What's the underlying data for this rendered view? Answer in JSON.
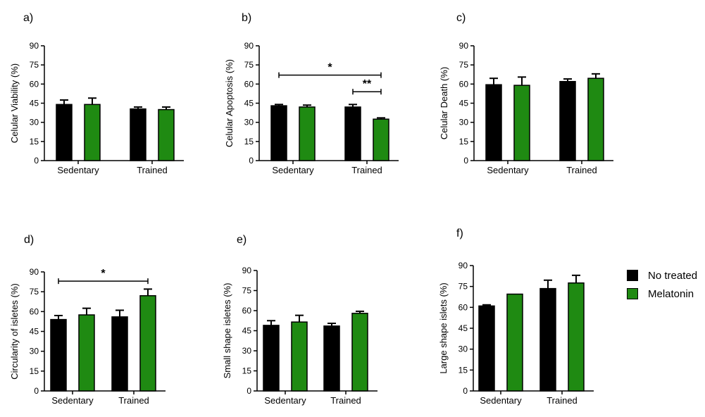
{
  "colors": {
    "no_treated": "#000000",
    "melatonin": "#1f8a12",
    "axis": "#000000"
  },
  "legend": {
    "items": [
      {
        "label": "No treated",
        "color": "#000000"
      },
      {
        "label": "Melatonin",
        "color": "#1f8a12"
      }
    ]
  },
  "chart_data": [
    {
      "panel": "a)",
      "type": "bar",
      "ylabel": "Celular Viability (%)",
      "ylim": [
        0,
        90
      ],
      "yticks": [
        "0",
        "15",
        "30",
        "45",
        "60",
        "75",
        "90"
      ],
      "categories": [
        "Sedentary",
        "Trained"
      ],
      "series": [
        {
          "name": "No treated",
          "values": [
            44,
            40.5
          ],
          "errors": [
            3.5,
            1.5
          ]
        },
        {
          "name": "Melatonin",
          "values": [
            44,
            40
          ],
          "errors": [
            5,
            2
          ]
        }
      ],
      "annotations": []
    },
    {
      "panel": "b)",
      "type": "bar",
      "ylabel": "Celular Apoptosis (%)",
      "ylim": [
        0,
        90
      ],
      "yticks": [
        "0",
        "15",
        "30",
        "45",
        "60",
        "75",
        "90"
      ],
      "categories": [
        "Sedentary",
        "Trained"
      ],
      "series": [
        {
          "name": "No treated",
          "values": [
            43,
            42
          ],
          "errors": [
            1,
            2
          ]
        },
        {
          "name": "Melatonin",
          "values": [
            42,
            32.5
          ],
          "errors": [
            1.5,
            1
          ]
        }
      ],
      "annotations": [
        {
          "text": "*",
          "from": [
            0,
            0
          ],
          "to": [
            1,
            1
          ],
          "y": 67
        },
        {
          "text": "**",
          "from": [
            1,
            0
          ],
          "to": [
            1,
            1
          ],
          "y": 54
        }
      ]
    },
    {
      "panel": "c)",
      "type": "bar",
      "ylabel": "Celular Death (%)",
      "ylim": [
        0,
        90
      ],
      "yticks": [
        "0",
        "15",
        "30",
        "45",
        "60",
        "75",
        "90"
      ],
      "categories": [
        "Sedentary",
        "Trained"
      ],
      "series": [
        {
          "name": "No treated",
          "values": [
            59.5,
            62
          ],
          "errors": [
            5,
            2
          ]
        },
        {
          "name": "Melatonin",
          "values": [
            59,
            64.5
          ],
          "errors": [
            6.5,
            3.5
          ]
        }
      ],
      "annotations": []
    },
    {
      "panel": "d)",
      "type": "bar",
      "ylabel": "Circularity of isletes (%)",
      "ylim": [
        0,
        90
      ],
      "yticks": [
        "0",
        "15",
        "30",
        "45",
        "60",
        "75",
        "90"
      ],
      "categories": [
        "Sedentary",
        "Trained"
      ],
      "series": [
        {
          "name": "No treated",
          "values": [
            54,
            56
          ],
          "errors": [
            3,
            5
          ]
        },
        {
          "name": "Melatonin",
          "values": [
            57.5,
            72
          ],
          "errors": [
            5,
            5
          ]
        }
      ],
      "annotations": [
        {
          "text": "*",
          "from": [
            0,
            0
          ],
          "to": [
            1,
            1
          ],
          "y": 83
        }
      ]
    },
    {
      "panel": "e)",
      "type": "bar",
      "ylabel": "Small shape isletes (%)",
      "ylim": [
        0,
        90
      ],
      "yticks": [
        "0",
        "15",
        "30",
        "45",
        "60",
        "75",
        "90"
      ],
      "categories": [
        "Sedentary",
        "Trained"
      ],
      "series": [
        {
          "name": "No treated",
          "values": [
            49,
            48.5
          ],
          "errors": [
            3.5,
            2
          ]
        },
        {
          "name": "Melatonin",
          "values": [
            51.5,
            58
          ],
          "errors": [
            5,
            1.5
          ]
        }
      ],
      "annotations": []
    },
    {
      "panel": "f)",
      "type": "bar",
      "ylabel": "Large shape islets (%)",
      "ylim": [
        0,
        90
      ],
      "yticks": [
        "0",
        "15",
        "30",
        "45",
        "60",
        "75",
        "90"
      ],
      "categories": [
        "Sedentary",
        "Trained"
      ],
      "series": [
        {
          "name": "No treated",
          "values": [
            61,
            73.5
          ],
          "errors": [
            0.8,
            6
          ]
        },
        {
          "name": "Melatonin",
          "values": [
            69.5,
            77.5
          ],
          "errors": [
            0,
            5.5
          ]
        }
      ],
      "annotations": []
    }
  ]
}
